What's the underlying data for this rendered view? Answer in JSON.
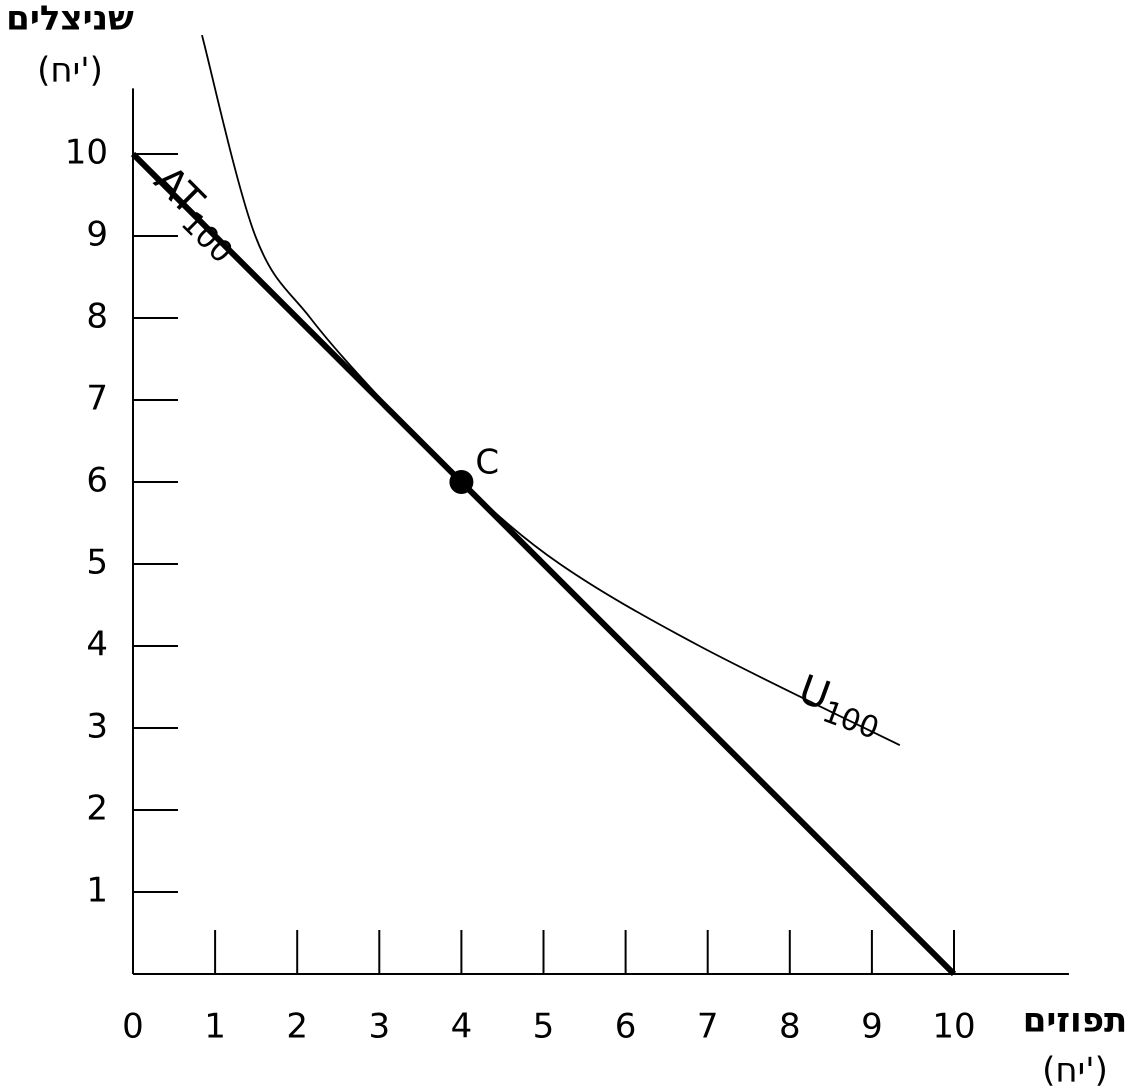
{
  "chart_data": {
    "type": "line",
    "xlabel": "תפוזים",
    "xunit": "(יח')",
    "ylabel": "שניצלים",
    "yunit": "(יח')",
    "xlim": [
      0,
      11.4
    ],
    "ylim": [
      0,
      10.8
    ],
    "xticks": [
      0,
      1,
      2,
      3,
      4,
      5,
      6,
      7,
      8,
      9,
      10
    ],
    "yticks": [
      1,
      2,
      3,
      4,
      5,
      6,
      7,
      8,
      9,
      10
    ],
    "grid": false,
    "series": [
      {
        "name": "AT",
        "name_subscript": "100",
        "color": "#000000",
        "x": [
          0,
          10
        ],
        "values": [
          10,
          0
        ]
      },
      {
        "name": "U",
        "name_subscript": "100",
        "color": "#000000",
        "x": [
          0.84,
          1.49,
          2.16,
          3.03,
          4,
          5.2,
          6.9,
          9.34
        ],
        "values": [
          11.45,
          9,
          8,
          7,
          6,
          5,
          4,
          2.79
        ]
      }
    ],
    "points": [
      {
        "label": "C",
        "x": 4,
        "y": 6,
        "color": "#000000"
      }
    ]
  }
}
